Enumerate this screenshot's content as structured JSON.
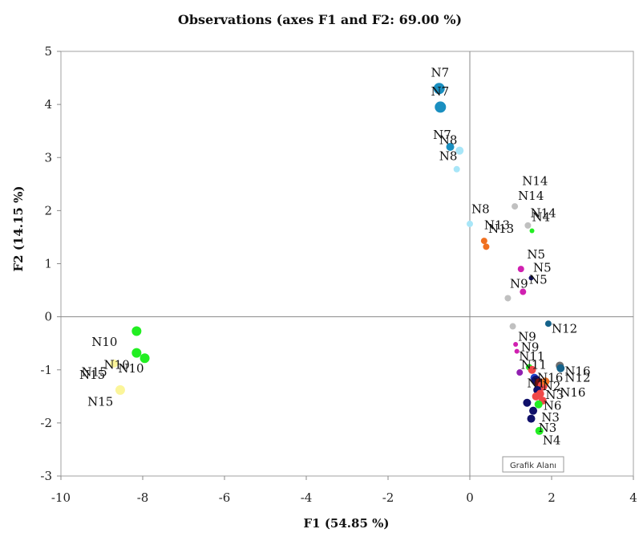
{
  "chart_data": {
    "type": "scatter",
    "title": "Observations (axes F1 and F2: 69.00 %)",
    "xlabel": "F1 (54.85 %)",
    "ylabel": "F2 (14.15 %)",
    "xlim": [
      -10,
      4
    ],
    "ylim": [
      -3,
      5
    ],
    "x_ticks": [
      -10,
      -8,
      -6,
      -4,
      -2,
      0,
      2,
      4
    ],
    "y_ticks": [
      -3,
      -2,
      -1,
      0,
      1,
      2,
      3,
      4,
      5
    ],
    "grid": false,
    "tooltip": "Grafik Alanı",
    "colors": {
      "tealblue": "#1a8fc0",
      "lightblue": "#a8e6f8",
      "orange": "#f07020",
      "gray": "#c0c0c0",
      "green": "#22ee22",
      "magenta": "#d020b0",
      "yellow": "#fbf59a",
      "darkteal": "#15628a",
      "navy": "#10106a",
      "red": "#f04848",
      "royal": "#2040c8",
      "purple": "#9020b0",
      "darkgray": "#6e6e6e",
      "darkred": "#7a1010"
    },
    "points": [
      {
        "x": -0.75,
        "y": 4.3,
        "color": "tealblue",
        "size": 7
      },
      {
        "x": -0.72,
        "y": 3.95,
        "color": "tealblue",
        "size": 7
      },
      {
        "x": -0.48,
        "y": 3.2,
        "color": "tealblue",
        "size": 5
      },
      {
        "x": -0.25,
        "y": 3.13,
        "color": "lightblue",
        "size": 5
      },
      {
        "x": -0.32,
        "y": 2.78,
        "color": "lightblue",
        "size": 4
      },
      {
        "x": 0.0,
        "y": 1.75,
        "color": "lightblue",
        "size": 4
      },
      {
        "x": 0.35,
        "y": 1.43,
        "color": "orange",
        "size": 4
      },
      {
        "x": 0.4,
        "y": 1.32,
        "color": "orange",
        "size": 4
      },
      {
        "x": 1.1,
        "y": 2.08,
        "color": "gray",
        "size": 4
      },
      {
        "x": 1.42,
        "y": 1.72,
        "color": "gray",
        "size": 4
      },
      {
        "x": 1.52,
        "y": 1.62,
        "color": "green",
        "size": 3
      },
      {
        "x": 1.25,
        "y": 0.9,
        "color": "magenta",
        "size": 4
      },
      {
        "x": 1.3,
        "y": 0.47,
        "color": "magenta",
        "size": 4
      },
      {
        "x": 1.5,
        "y": 0.73,
        "color": "navy",
        "size": 3
      },
      {
        "x": 0.93,
        "y": 0.35,
        "color": "gray",
        "size": 4
      },
      {
        "x": 1.92,
        "y": -0.13,
        "color": "darkteal",
        "size": 4
      },
      {
        "x": 1.05,
        "y": -0.18,
        "color": "gray",
        "size": 4
      },
      {
        "x": 1.12,
        "y": -0.52,
        "color": "magenta",
        "size": 3
      },
      {
        "x": 1.15,
        "y": -0.65,
        "color": "magenta",
        "size": 3
      },
      {
        "x": 1.22,
        "y": -1.05,
        "color": "purple",
        "size": 4
      },
      {
        "x": 1.45,
        "y": -0.95,
        "color": "green",
        "size": 4
      },
      {
        "x": 1.52,
        "y": -1.0,
        "color": "red",
        "size": 5
      },
      {
        "x": 1.58,
        "y": -1.15,
        "color": "royal",
        "size": 5
      },
      {
        "x": 1.62,
        "y": -1.2,
        "color": "navy",
        "size": 6
      },
      {
        "x": 1.7,
        "y": -1.25,
        "color": "darkred",
        "size": 6
      },
      {
        "x": 1.78,
        "y": -1.3,
        "color": "red",
        "size": 6
      },
      {
        "x": 1.85,
        "y": -1.22,
        "color": "orange",
        "size": 5
      },
      {
        "x": 1.65,
        "y": -1.38,
        "color": "navy",
        "size": 5
      },
      {
        "x": 1.72,
        "y": -1.45,
        "color": "red",
        "size": 5
      },
      {
        "x": 1.62,
        "y": -1.5,
        "color": "red",
        "size": 5
      },
      {
        "x": 1.78,
        "y": -1.58,
        "color": "red",
        "size": 5
      },
      {
        "x": 1.68,
        "y": -1.65,
        "color": "green",
        "size": 5
      },
      {
        "x": 2.2,
        "y": -0.92,
        "color": "darkgray",
        "size": 5
      },
      {
        "x": 2.22,
        "y": -0.97,
        "color": "darkteal",
        "size": 5
      },
      {
        "x": 1.4,
        "y": -1.62,
        "color": "navy",
        "size": 5
      },
      {
        "x": 1.55,
        "y": -1.77,
        "color": "navy",
        "size": 5
      },
      {
        "x": 1.5,
        "y": -1.92,
        "color": "navy",
        "size": 5
      },
      {
        "x": 1.7,
        "y": -2.15,
        "color": "green",
        "size": 5
      },
      {
        "x": -8.15,
        "y": -0.27,
        "color": "green",
        "size": 6
      },
      {
        "x": -8.15,
        "y": -0.68,
        "color": "green",
        "size": 6
      },
      {
        "x": -7.95,
        "y": -0.78,
        "color": "green",
        "size": 6
      },
      {
        "x": -8.7,
        "y": -0.88,
        "color": "yellow",
        "size": 5
      },
      {
        "x": -8.55,
        "y": -1.38,
        "color": "yellow",
        "size": 6
      }
    ],
    "labels": [
      {
        "text": "N7",
        "x": -0.95,
        "y": 4.52
      },
      {
        "text": "N7",
        "x": -0.95,
        "y": 4.17
      },
      {
        "text": "N7",
        "x": -0.9,
        "y": 3.35
      },
      {
        "text": "N8",
        "x": -0.75,
        "y": 3.25
      },
      {
        "text": "N8",
        "x": -0.75,
        "y": 2.95
      },
      {
        "text": "N8",
        "x": 0.04,
        "y": 1.95
      },
      {
        "text": "N13",
        "x": 0.35,
        "y": 1.65
      },
      {
        "text": "N13",
        "x": 0.45,
        "y": 1.58
      },
      {
        "text": "N14",
        "x": 1.28,
        "y": 2.48
      },
      {
        "text": "N14",
        "x": 1.18,
        "y": 2.2
      },
      {
        "text": "N14",
        "x": 1.48,
        "y": 1.88
      },
      {
        "text": "N4",
        "x": 1.52,
        "y": 1.8
      },
      {
        "text": "N5",
        "x": 1.4,
        "y": 1.1
      },
      {
        "text": "N5",
        "x": 1.55,
        "y": 0.85
      },
      {
        "text": "N5",
        "x": 1.45,
        "y": 0.62
      },
      {
        "text": "N9",
        "x": 0.98,
        "y": 0.55
      },
      {
        "text": "N12",
        "x": 2.0,
        "y": -0.3
      },
      {
        "text": "N9",
        "x": 1.18,
        "y": -0.45
      },
      {
        "text": "N9",
        "x": 1.25,
        "y": -0.65
      },
      {
        "text": "N11",
        "x": 1.2,
        "y": -0.82
      },
      {
        "text": "N11",
        "x": 1.25,
        "y": -0.98
      },
      {
        "text": "N16",
        "x": 2.32,
        "y": -1.1
      },
      {
        "text": "N12",
        "x": 2.32,
        "y": -1.22
      },
      {
        "text": "N16",
        "x": 1.65,
        "y": -1.22
      },
      {
        "text": "N16",
        "x": 2.2,
        "y": -1.5
      },
      {
        "text": "N1",
        "x": 1.4,
        "y": -1.33
      },
      {
        "text": "N2",
        "x": 1.78,
        "y": -1.38
      },
      {
        "text": "N3",
        "x": 1.85,
        "y": -1.55
      },
      {
        "text": "N6",
        "x": 1.8,
        "y": -1.75
      },
      {
        "text": "N3",
        "x": 1.75,
        "y": -1.97
      },
      {
        "text": "N3",
        "x": 1.68,
        "y": -2.17
      },
      {
        "text": "N4",
        "x": 1.78,
        "y": -2.4
      },
      {
        "text": "N10",
        "x": -9.25,
        "y": -0.55
      },
      {
        "text": "N10",
        "x": -8.95,
        "y": -0.98
      },
      {
        "text": "N10",
        "x": -8.6,
        "y": -1.05
      },
      {
        "text": "N15",
        "x": -9.5,
        "y": -1.12
      },
      {
        "text": "N15",
        "x": -9.55,
        "y": -1.17
      },
      {
        "text": "N15",
        "x": -9.35,
        "y": -1.68
      }
    ]
  }
}
